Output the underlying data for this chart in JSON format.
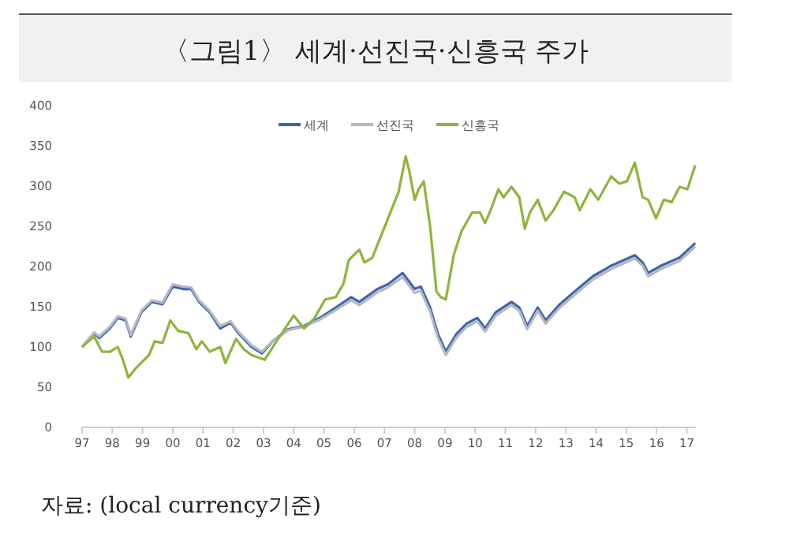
{
  "chart_data": {
    "type": "line",
    "title": "〈그림1〉 세계·선진국·신흥국 주가",
    "annotations": [
      "자료: (local currency기준)"
    ],
    "xlim": [
      1997,
      2017.3
    ],
    "xticks": [
      {
        "value": 1997,
        "label": "97"
      },
      {
        "value": 1998,
        "label": "98"
      },
      {
        "value": 1999,
        "label": "99"
      },
      {
        "value": 2000,
        "label": "00"
      },
      {
        "value": 2001,
        "label": "01"
      },
      {
        "value": 2002,
        "label": "02"
      },
      {
        "value": 2003,
        "label": "03"
      },
      {
        "value": 2004,
        "label": "04"
      },
      {
        "value": 2005,
        "label": "05"
      },
      {
        "value": 2006,
        "label": "06"
      },
      {
        "value": 2007,
        "label": "07"
      },
      {
        "value": 2008,
        "label": "08"
      },
      {
        "value": 2009,
        "label": "09"
      },
      {
        "value": 2010,
        "label": "10"
      },
      {
        "value": 2011,
        "label": "11"
      },
      {
        "value": 2012,
        "label": "12"
      },
      {
        "value": 2013,
        "label": "13"
      },
      {
        "value": 2014,
        "label": "14"
      },
      {
        "value": 2015,
        "label": "15"
      },
      {
        "value": 2016,
        "label": "16"
      },
      {
        "value": 2017,
        "label": "17"
      }
    ],
    "ylim": [
      0,
      400
    ],
    "yticks": [
      0,
      50,
      100,
      150,
      200,
      250,
      300,
      350,
      400
    ],
    "grid": false,
    "legend": "top",
    "line_style": "solid",
    "marker": "none",
    "series": [
      {
        "name": "세계",
        "color": "#3f64a8",
        "x": [
          1997,
          1997.4,
          1997.57,
          1997.92,
          1998.18,
          1998.44,
          1998.61,
          1998.96,
          1999.31,
          1999.66,
          2000,
          2000.35,
          2000.61,
          2000.87,
          2001.22,
          2001.57,
          2001.91,
          2002.17,
          2002.6,
          2002.95,
          2003.3,
          2003.82,
          2004.34,
          2004.86,
          2005.39,
          2005.9,
          2006.17,
          2006.77,
          2007.12,
          2007.6,
          2008,
          2008.2,
          2008.51,
          2008.77,
          2009.03,
          2009.38,
          2009.72,
          2010.07,
          2010.33,
          2010.68,
          2011.2,
          2011.46,
          2011.72,
          2012.07,
          2012.33,
          2012.77,
          2013.29,
          2013.9,
          2014.5,
          2015.28,
          2015.54,
          2015.72,
          2016.15,
          2016.76,
          2017.28
        ],
        "values": [
          100,
          117,
          111,
          123,
          136,
          133,
          113,
          143,
          156,
          153,
          175,
          172,
          172,
          156,
          143,
          123,
          130,
          117,
          100,
          92,
          107,
          122,
          126,
          136,
          149,
          162,
          156,
          172,
          178,
          192,
          172,
          175,
          149,
          116,
          94,
          116,
          129,
          136,
          123,
          143,
          156,
          149,
          126,
          149,
          133,
          152,
          169,
          188,
          201,
          214,
          205,
          192,
          201,
          211,
          229
        ]
      },
      {
        "name": "선진국",
        "color": "#b4b8c4",
        "x": [
          1997,
          1997.4,
          1997.57,
          1997.92,
          1998.18,
          1998.44,
          1998.61,
          1998.96,
          1999.31,
          1999.66,
          2000,
          2000.35,
          2000.61,
          2000.87,
          2001.22,
          2001.57,
          2001.91,
          2002.17,
          2002.6,
          2002.95,
          2003.3,
          2003.82,
          2004.34,
          2004.86,
          2005.39,
          2005.9,
          2006.17,
          2006.77,
          2007.12,
          2007.6,
          2008,
          2008.2,
          2008.51,
          2008.77,
          2009.03,
          2009.38,
          2009.72,
          2010.07,
          2010.33,
          2010.68,
          2011.2,
          2011.46,
          2011.72,
          2012.07,
          2012.33,
          2012.77,
          2013.29,
          2013.9,
          2014.5,
          2015.28,
          2015.54,
          2015.72,
          2016.15,
          2016.76,
          2017.28
        ],
        "values": [
          100,
          118,
          113,
          125,
          138,
          135,
          115,
          145,
          158,
          155,
          178,
          175,
          174,
          158,
          145,
          126,
          132,
          119,
          102,
          94,
          107,
          121,
          125,
          134,
          146,
          158,
          152,
          168,
          174,
          187,
          167,
          170,
          144,
          111,
          90,
          112,
          125,
          132,
          119,
          139,
          152,
          145,
          122,
          145,
          129,
          148,
          165,
          184,
          197,
          210,
          201,
          188,
          197,
          207,
          225
        ]
      },
      {
        "name": "신흥국",
        "color": "#8fb43c",
        "x": [
          1997,
          1997.4,
          1997.66,
          1997.92,
          1998.18,
          1998.35,
          1998.53,
          1998.79,
          1999.22,
          1999.4,
          1999.66,
          1999.92,
          2000.18,
          2000.52,
          2000.78,
          2000.96,
          2001.22,
          2001.57,
          2001.74,
          2002.09,
          2002.35,
          2002.6,
          2003.04,
          2003.48,
          2004,
          2004.34,
          2004.69,
          2005.04,
          2005.39,
          2005.65,
          2005.82,
          2006.17,
          2006.34,
          2006.6,
          2006.95,
          2007.12,
          2007.47,
          2007.7,
          2007.82,
          2008,
          2008.13,
          2008.3,
          2008.51,
          2008.72,
          2008.86,
          2009.03,
          2009.29,
          2009.55,
          2009.9,
          2010.16,
          2010.33,
          2010.51,
          2010.77,
          2010.94,
          2011.2,
          2011.46,
          2011.64,
          2011.81,
          2012.07,
          2012.33,
          2012.59,
          2012.94,
          2013.29,
          2013.46,
          2013.81,
          2014.07,
          2014.5,
          2014.76,
          2015.02,
          2015.28,
          2015.54,
          2015.72,
          2015.98,
          2016.24,
          2016.5,
          2016.76,
          2017.02,
          2017.28
        ],
        "values": [
          100,
          113,
          94,
          94,
          100,
          84,
          62,
          74,
          90,
          107,
          105,
          133,
          120,
          117,
          97,
          107,
          94,
          100,
          80,
          110,
          97,
          90,
          84,
          110,
          139,
          123,
          136,
          159,
          162,
          179,
          208,
          221,
          205,
          211,
          244,
          260,
          293,
          337,
          319,
          283,
          296,
          306,
          250,
          169,
          162,
          159,
          214,
          244,
          267,
          267,
          254,
          270,
          296,
          286,
          299,
          286,
          247,
          267,
          283,
          257,
          270,
          293,
          286,
          270,
          296,
          283,
          312,
          303,
          306,
          329,
          286,
          283,
          260,
          283,
          280,
          299,
          296,
          326
        ]
      }
    ]
  }
}
